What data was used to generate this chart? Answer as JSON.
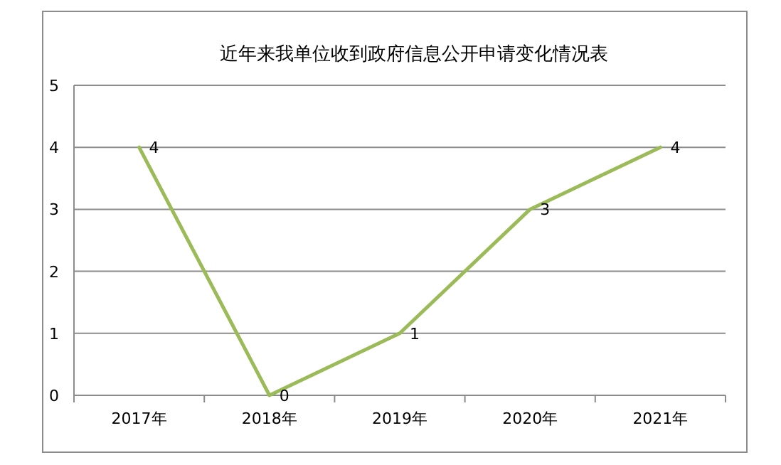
{
  "chart_data": {
    "type": "line",
    "title": "近年来我单位收到政府信息公开申请变化情况表",
    "categories": [
      "2017年",
      "2018年",
      "2019年",
      "2020年",
      "2021年"
    ],
    "series": [
      {
        "color": "#9bbb59",
        "values": [
          4,
          0,
          1,
          3,
          4
        ]
      }
    ],
    "ylim": [
      0,
      5
    ],
    "yticks": [
      0,
      1,
      2,
      3,
      4,
      5
    ],
    "grid": "y",
    "data_labels": true,
    "marker": "none"
  }
}
